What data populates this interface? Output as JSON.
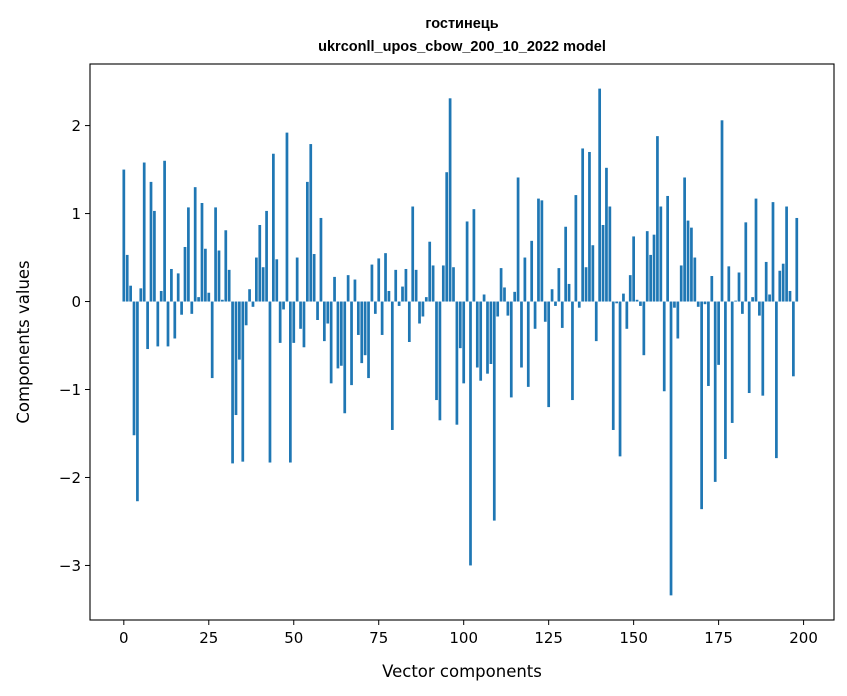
{
  "chart_data": {
    "type": "bar",
    "title_line1": "гостинець",
    "title_line2": "ukrconll_upos_cbow_200_10_2022 model",
    "xlabel": "Vector components",
    "ylabel": "Components values",
    "xlim": [
      -9.95,
      208.95
    ],
    "ylim": [
      -3.62,
      2.7
    ],
    "x_ticks": [
      0,
      25,
      50,
      75,
      100,
      125,
      150,
      175,
      200
    ],
    "x_tick_labels": [
      "0",
      "25",
      "50",
      "75",
      "100",
      "125",
      "150",
      "175",
      "200"
    ],
    "y_ticks": [
      -3,
      -2,
      -1,
      0,
      1,
      2
    ],
    "y_tick_labels": [
      "−3",
      "−2",
      "−1",
      "0",
      "1",
      "2"
    ],
    "bar_color": "#1f77b4",
    "bar_width": 0.8,
    "values": [
      1.5,
      0.53,
      0.18,
      -1.52,
      -2.27,
      0.15,
      1.58,
      -0.54,
      1.36,
      1.03,
      -0.51,
      0.12,
      1.6,
      -0.51,
      0.37,
      -0.42,
      0.32,
      -0.15,
      0.62,
      1.07,
      -0.14,
      1.3,
      0.05,
      1.12,
      0.6,
      0.1,
      -0.87,
      1.07,
      0.58,
      0.02,
      0.81,
      0.36,
      -1.84,
      -1.29,
      -0.66,
      -1.82,
      -0.27,
      0.14,
      -0.06,
      0.5,
      0.87,
      0.39,
      1.03,
      -1.83,
      1.68,
      0.48,
      -0.47,
      -0.09,
      1.92,
      -1.83,
      -0.47,
      0.5,
      -0.31,
      -0.52,
      1.36,
      1.79,
      0.54,
      -0.21,
      0.95,
      -0.45,
      -0.25,
      -0.93,
      0.28,
      -0.76,
      -0.73,
      -1.27,
      0.3,
      -0.95,
      0.25,
      -0.38,
      -0.7,
      -0.61,
      -0.87,
      0.42,
      -0.14,
      0.49,
      -0.38,
      0.55,
      0.12,
      -1.46,
      0.36,
      -0.05,
      0.17,
      0.37,
      -0.46,
      1.08,
      0.36,
      -0.25,
      -0.17,
      0.05,
      0.68,
      0.41,
      -1.12,
      -1.35,
      0.41,
      1.47,
      2.31,
      0.39,
      -1.4,
      -0.53,
      -0.93,
      0.91,
      -3.0,
      1.05,
      -0.75,
      -0.9,
      0.08,
      -0.82,
      -0.71,
      -2.49,
      -0.17,
      0.38,
      0.16,
      -0.16,
      -1.09,
      0.11,
      1.41,
      -0.75,
      0.5,
      -0.97,
      0.69,
      -0.31,
      1.17,
      1.15,
      -0.23,
      -1.2,
      0.14,
      -0.05,
      0.38,
      -0.3,
      0.85,
      0.2,
      -1.12,
      1.21,
      -0.07,
      1.74,
      0.39,
      1.7,
      0.64,
      -0.45,
      2.42,
      0.87,
      1.52,
      1.08,
      -1.46,
      -0.02,
      -1.76,
      0.09,
      -0.31,
      0.3,
      0.74,
      0.02,
      -0.05,
      -0.61,
      0.8,
      0.53,
      0.76,
      1.88,
      1.08,
      -1.02,
      1.2,
      -3.34,
      -0.07,
      -0.42,
      0.41,
      1.41,
      0.92,
      0.84,
      0.5,
      -0.06,
      -2.36,
      -0.03,
      -0.96,
      0.29,
      -2.05,
      -0.72,
      2.06,
      -1.79,
      0.4,
      -1.38,
      0.01,
      0.33,
      -0.14,
      0.9,
      -1.04,
      0.05,
      1.17,
      -0.16,
      -1.07,
      0.45,
      0.08,
      1.13,
      -1.78,
      0.35,
      0.43,
      1.08,
      0.12,
      -0.85,
      0.95
    ]
  }
}
